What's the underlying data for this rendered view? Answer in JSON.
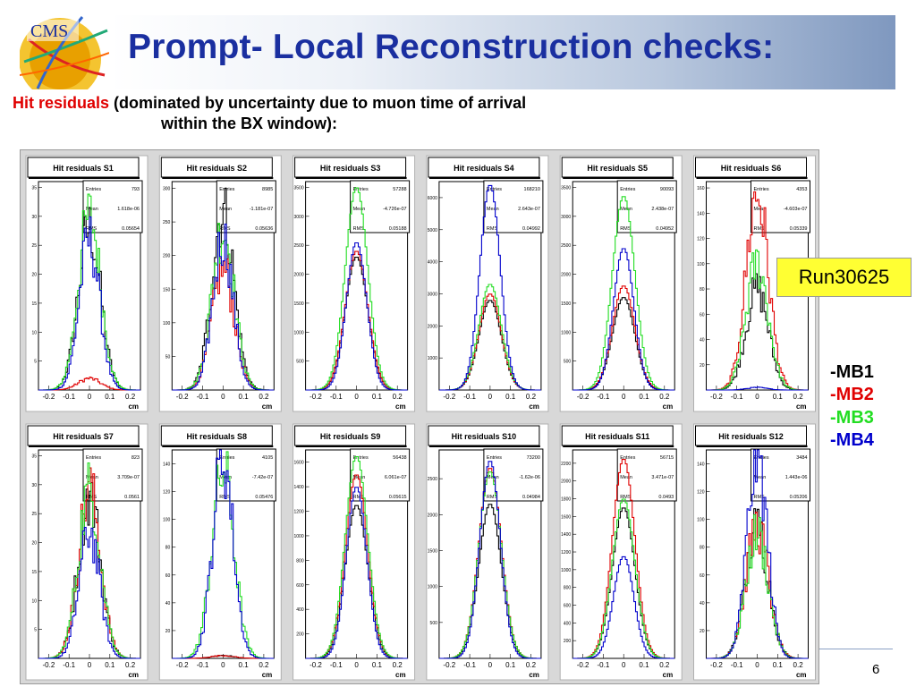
{
  "slide": {
    "title": "Prompt- Local Reconstruction checks:",
    "subtitle_highlight": "Hit residuals",
    "subtitle_rest": " (dominated by   uncertainty due to muon time of arrival",
    "subtitle_line2": "within the BX window):",
    "run_label": "Run30625",
    "page_number": "6",
    "logo_text": "CMS",
    "legend": [
      {
        "label": "-MB1",
        "color": "#000000"
      },
      {
        "label": "-MB2",
        "color": "#e00000"
      },
      {
        "label": "-MB3",
        "color": "#22dd22"
      },
      {
        "label": "-MB4",
        "color": "#0000cc"
      }
    ]
  },
  "chart_data": {
    "type": "histogram-grid",
    "xlabel": "cm",
    "x_ticks": [
      "-0.2",
      "-0.1",
      "0",
      "0.1",
      "0.2"
    ],
    "stat_labels": [
      "Entries",
      "Mean",
      "RMS"
    ],
    "series_colors": {
      "MB1": "#000000",
      "MB2": "#e00000",
      "MB3": "#22dd22",
      "MB4": "#0000cc"
    },
    "panels": [
      {
        "title": "Hit residuals S1",
        "entries": "793",
        "mean": "1.618e-06",
        "rms": "0.05654",
        "y_ticks": [
          "35",
          "30",
          "25",
          "20",
          "15",
          "10",
          "5"
        ],
        "ymax": 36,
        "peaks": {
          "MB1": 28,
          "MB2": 2,
          "MB3": 30,
          "MB4": 26
        }
      },
      {
        "title": "Hit residuals S2",
        "entries": "8985",
        "mean": "-1.181e-07",
        "rms": "0.05636",
        "y_ticks": [
          "300",
          "250",
          "200",
          "150",
          "100",
          "50"
        ],
        "ymax": 310,
        "peaks": {
          "MB1": 265,
          "MB2": 180,
          "MB3": 240,
          "MB4": 225
        }
      },
      {
        "title": "Hit residuals S3",
        "entries": "57288",
        "mean": "-4.726e-07",
        "rms": "0.05188",
        "y_ticks": [
          "3500",
          "3000",
          "2500",
          "2000",
          "1500",
          "1000",
          "500"
        ],
        "ymax": 3600,
        "peaks": {
          "MB1": 2300,
          "MB2": 2400,
          "MB3": 3500,
          "MB4": 2550
        }
      },
      {
        "title": "Hit residuals S4",
        "entries": "168210",
        "mean": "2.643e-07",
        "rms": "0.04992",
        "y_ticks": [
          "6000",
          "5000",
          "4000",
          "3000",
          "2000",
          "1000"
        ],
        "ymax": 6500,
        "peaks": {
          "MB1": 2800,
          "MB2": 3000,
          "MB3": 3300,
          "MB4": 6400
        }
      },
      {
        "title": "Hit residuals S5",
        "entries": "90093",
        "mean": "2.438e-07",
        "rms": "0.04952",
        "y_ticks": [
          "3500",
          "3000",
          "2500",
          "2000",
          "1500",
          "1000",
          "500"
        ],
        "ymax": 3600,
        "peaks": {
          "MB1": 1600,
          "MB2": 1800,
          "MB3": 3350,
          "MB4": 2450
        }
      },
      {
        "title": "Hit residuals S6",
        "entries": "4353",
        "mean": "-4.603e-07",
        "rms": "0.05339",
        "y_ticks": [
          "160",
          "140",
          "120",
          "100",
          "80",
          "60",
          "40",
          "20"
        ],
        "ymax": 165,
        "peaks": {
          "MB1": 80,
          "MB2": 155,
          "MB3": 100,
          "MB4": 2
        }
      },
      {
        "title": "Hit residuals S7",
        "entries": "823",
        "mean": "3.709e-07",
        "rms": "0.0561",
        "y_ticks": [
          "35",
          "30",
          "25",
          "20",
          "15",
          "10",
          "5"
        ],
        "ymax": 36,
        "peaks": {
          "MB1": 28,
          "MB2": 29,
          "MB3": 29,
          "MB4": 22
        }
      },
      {
        "title": "Hit residuals S8",
        "entries": "4105",
        "mean": "-7.42e-07",
        "rms": "0.05476",
        "y_ticks": [
          "140",
          "120",
          "100",
          "80",
          "60",
          "40",
          "20"
        ],
        "ymax": 150,
        "peaks": {
          "MB1": 2,
          "MB2": 2,
          "MB3": 135,
          "MB4": 145
        }
      },
      {
        "title": "Hit residuals S9",
        "entries": "56438",
        "mean": "6.061e-07",
        "rms": "0.05615",
        "y_ticks": [
          "1600",
          "1400",
          "1200",
          "1000",
          "800",
          "600",
          "400",
          "200"
        ],
        "ymax": 1700,
        "peaks": {
          "MB1": 1250,
          "MB2": 1500,
          "MB3": 1650,
          "MB4": 1400
        }
      },
      {
        "title": "Hit residuals S10",
        "entries": "73200",
        "mean": "-1.62e-06",
        "rms": "0.04984",
        "y_ticks": [
          "2500",
          "2000",
          "1500",
          "1000",
          "500"
        ],
        "ymax": 2900,
        "peaks": {
          "MB1": 2150,
          "MB2": 2650,
          "MB3": 2600,
          "MB4": 2750
        }
      },
      {
        "title": "Hit residuals S11",
        "entries": "56715",
        "mean": "3.471e-07",
        "rms": "0.0493",
        "y_ticks": [
          "2200",
          "2000",
          "1800",
          "1600",
          "1400",
          "1200",
          "1000",
          "800",
          "600",
          "400",
          "200"
        ],
        "ymax": 2350,
        "peaks": {
          "MB1": 1700,
          "MB2": 2250,
          "MB3": 1800,
          "MB4": 1150
        }
      },
      {
        "title": "Hit residuals S12",
        "entries": "3484",
        "mean": "1.443e-06",
        "rms": "0.05206",
        "y_ticks": [
          "140",
          "120",
          "100",
          "80",
          "60",
          "40",
          "20"
        ],
        "ymax": 150,
        "peaks": {
          "MB1": 95,
          "MB2": 95,
          "MB3": 90,
          "MB4": 145
        }
      }
    ]
  }
}
